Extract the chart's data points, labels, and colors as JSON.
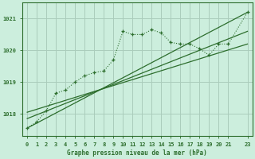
{
  "title": "Graphe pression niveau de la mer (hPa)",
  "bg_color": "#cceedd",
  "grid_color": "#aaccbb",
  "line_color": "#2d6e2d",
  "xlim": [
    -0.5,
    23.5
  ],
  "ylim": [
    1017.3,
    1021.5
  ],
  "yticks": [
    1018,
    1019,
    1020,
    1021
  ],
  "x_ticks": [
    0,
    1,
    2,
    3,
    4,
    5,
    6,
    7,
    8,
    9,
    10,
    11,
    12,
    13,
    14,
    15,
    16,
    17,
    18,
    19,
    20,
    21,
    23
  ],
  "main_line_x": [
    0,
    1,
    2,
    3,
    4,
    5,
    6,
    7,
    8,
    9,
    10,
    11,
    12,
    13,
    14,
    15,
    16,
    17,
    18,
    19,
    20,
    21,
    23
  ],
  "main_line_y": [
    1017.55,
    1017.75,
    1018.1,
    1018.65,
    1018.75,
    1019.0,
    1019.2,
    1019.3,
    1019.35,
    1019.7,
    1020.6,
    1020.5,
    1020.5,
    1020.65,
    1020.55,
    1020.25,
    1020.2,
    1020.2,
    1020.05,
    1019.85,
    1020.2,
    1020.2,
    1021.2
  ],
  "reg_line1_x": [
    0,
    23
  ],
  "reg_line1_y": [
    1017.55,
    1021.2
  ],
  "reg_line2_x": [
    0,
    23
  ],
  "reg_line2_y": [
    1017.85,
    1020.6
  ],
  "reg_line3_x": [
    0,
    23
  ],
  "reg_line3_y": [
    1018.05,
    1020.2
  ]
}
